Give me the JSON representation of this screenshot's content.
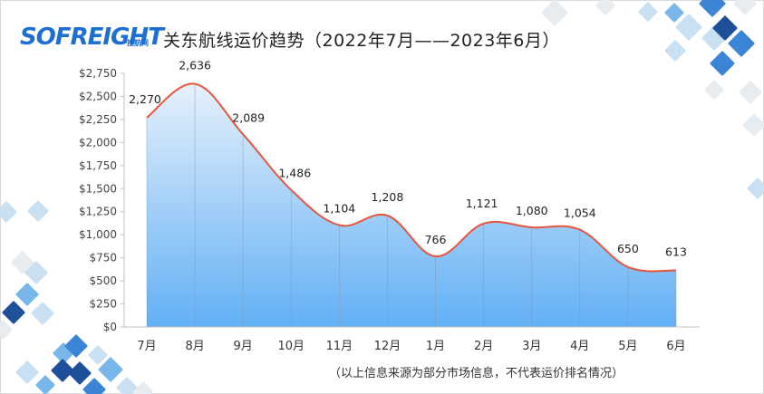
{
  "brand": {
    "logo_text": "SOFREIGHT",
    "logo_sub": "搜航网"
  },
  "title": "关东航线运价趋势（2022年7月——2023年6月）",
  "note": "（以上信息来源为部分市场信息，不代表运价排名情况）",
  "colors": {
    "line": "#e8553f",
    "area_top": "#e6f0fb",
    "area_bottom": "#62b0f5",
    "grid_axis": "#bfbfbf",
    "tiles": [
      "#1e4f99",
      "#3c85d6",
      "#79b6ea",
      "#c9dff2",
      "#e7ecf1"
    ]
  },
  "chart_data": {
    "type": "area",
    "categories": [
      "7月",
      "8月",
      "9月",
      "10月",
      "11月",
      "12月",
      "1月",
      "2月",
      "3月",
      "4月",
      "5月",
      "6月"
    ],
    "series": [
      {
        "values": [
          2270,
          2636,
          2089,
          1486,
          1104,
          1208,
          766,
          1121,
          1080,
          1054,
          650,
          613
        ]
      }
    ],
    "data_labels": [
      "2,270",
      "2,636",
      "2,089",
      "1,486",
      "1,104",
      "1,208",
      "766",
      "1,121",
      "1,080",
      "1,054",
      "650",
      "613"
    ],
    "ylim": [
      0,
      2750
    ],
    "yticks": [
      "$0",
      "$250",
      "$500",
      "$750",
      "$1,000",
      "$1,250",
      "$1,500",
      "$1,750",
      "$2,000",
      "$2,250",
      "$2,500",
      "$2,750"
    ],
    "ytick_values": [
      0,
      250,
      500,
      750,
      1000,
      1250,
      1500,
      1750,
      2000,
      2250,
      2500,
      2750
    ],
    "grid": false,
    "legend": "none",
    "smooth": true
  }
}
